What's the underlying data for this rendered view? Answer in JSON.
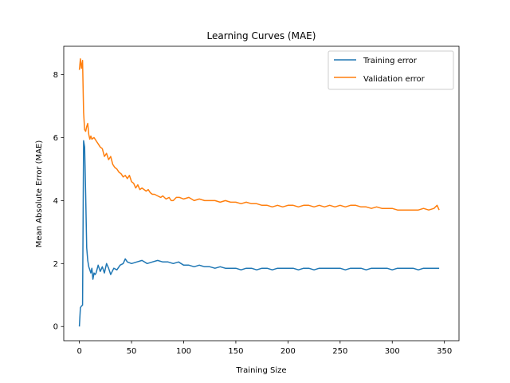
{
  "chart_data": {
    "type": "line",
    "title": "Learning Curves (MAE)",
    "xlabel": "Training Size",
    "ylabel": "Mean Absolute Error (MAE)",
    "xlim": [
      -15,
      364
    ],
    "ylim": [
      -0.45,
      8.9
    ],
    "xticks": [
      0,
      50,
      100,
      150,
      200,
      250,
      300,
      350
    ],
    "yticks": [
      0,
      2,
      4,
      6,
      8
    ],
    "grid": false,
    "legend_position": "top-right",
    "series": [
      {
        "name": "Training error",
        "color": "#1f77b4",
        "points": [
          [
            0,
            0.0
          ],
          [
            1,
            0.6
          ],
          [
            2,
            0.65
          ],
          [
            3,
            0.68
          ],
          [
            4,
            5.9
          ],
          [
            5,
            5.7
          ],
          [
            6,
            4.2
          ],
          [
            7,
            2.5
          ],
          [
            8,
            2.1
          ],
          [
            9,
            1.9
          ],
          [
            10,
            1.8
          ],
          [
            11,
            1.7
          ],
          [
            12,
            1.85
          ],
          [
            13,
            1.5
          ],
          [
            14,
            1.7
          ],
          [
            15,
            1.65
          ],
          [
            16,
            1.7
          ],
          [
            18,
            1.95
          ],
          [
            20,
            1.75
          ],
          [
            22,
            1.9
          ],
          [
            24,
            1.7
          ],
          [
            26,
            2.0
          ],
          [
            28,
            1.85
          ],
          [
            30,
            1.65
          ],
          [
            33,
            1.85
          ],
          [
            36,
            1.8
          ],
          [
            39,
            1.95
          ],
          [
            42,
            2.0
          ],
          [
            44,
            2.15
          ],
          [
            46,
            2.05
          ],
          [
            50,
            2.0
          ],
          [
            55,
            2.05
          ],
          [
            60,
            2.1
          ],
          [
            65,
            2.0
          ],
          [
            70,
            2.05
          ],
          [
            75,
            2.1
          ],
          [
            80,
            2.05
          ],
          [
            85,
            2.05
          ],
          [
            90,
            2.0
          ],
          [
            95,
            2.05
          ],
          [
            100,
            1.95
          ],
          [
            105,
            1.95
          ],
          [
            110,
            1.9
          ],
          [
            115,
            1.95
          ],
          [
            120,
            1.9
          ],
          [
            125,
            1.9
          ],
          [
            130,
            1.85
          ],
          [
            135,
            1.9
          ],
          [
            140,
            1.85
          ],
          [
            145,
            1.85
          ],
          [
            150,
            1.85
          ],
          [
            155,
            1.8
          ],
          [
            160,
            1.85
          ],
          [
            165,
            1.85
          ],
          [
            170,
            1.8
          ],
          [
            175,
            1.85
          ],
          [
            180,
            1.85
          ],
          [
            185,
            1.8
          ],
          [
            190,
            1.85
          ],
          [
            195,
            1.85
          ],
          [
            200,
            1.85
          ],
          [
            205,
            1.85
          ],
          [
            210,
            1.8
          ],
          [
            215,
            1.85
          ],
          [
            220,
            1.85
          ],
          [
            225,
            1.8
          ],
          [
            230,
            1.85
          ],
          [
            235,
            1.85
          ],
          [
            240,
            1.85
          ],
          [
            245,
            1.85
          ],
          [
            250,
            1.85
          ],
          [
            255,
            1.8
          ],
          [
            260,
            1.85
          ],
          [
            265,
            1.85
          ],
          [
            270,
            1.85
          ],
          [
            275,
            1.8
          ],
          [
            280,
            1.85
          ],
          [
            285,
            1.85
          ],
          [
            290,
            1.85
          ],
          [
            295,
            1.85
          ],
          [
            300,
            1.8
          ],
          [
            305,
            1.85
          ],
          [
            310,
            1.85
          ],
          [
            315,
            1.85
          ],
          [
            320,
            1.85
          ],
          [
            325,
            1.8
          ],
          [
            330,
            1.85
          ],
          [
            335,
            1.85
          ],
          [
            340,
            1.85
          ],
          [
            345,
            1.85
          ]
        ]
      },
      {
        "name": "Validation error",
        "color": "#ff7f0e",
        "points": [
          [
            0,
            8.15
          ],
          [
            1,
            8.5
          ],
          [
            2,
            8.2
          ],
          [
            3,
            8.45
          ],
          [
            4,
            6.8
          ],
          [
            5,
            6.25
          ],
          [
            6,
            6.2
          ],
          [
            7,
            6.35
          ],
          [
            8,
            6.45
          ],
          [
            9,
            6.1
          ],
          [
            10,
            5.95
          ],
          [
            11,
            6.05
          ],
          [
            12,
            5.95
          ],
          [
            14,
            6.0
          ],
          [
            16,
            5.9
          ],
          [
            18,
            5.8
          ],
          [
            20,
            5.7
          ],
          [
            22,
            5.65
          ],
          [
            24,
            5.4
          ],
          [
            26,
            5.5
          ],
          [
            28,
            5.3
          ],
          [
            30,
            5.4
          ],
          [
            32,
            5.15
          ],
          [
            34,
            5.05
          ],
          [
            36,
            5.0
          ],
          [
            38,
            4.9
          ],
          [
            40,
            4.85
          ],
          [
            42,
            4.75
          ],
          [
            44,
            4.8
          ],
          [
            46,
            4.7
          ],
          [
            48,
            4.8
          ],
          [
            50,
            4.6
          ],
          [
            52,
            4.55
          ],
          [
            54,
            4.4
          ],
          [
            56,
            4.5
          ],
          [
            58,
            4.35
          ],
          [
            60,
            4.4
          ],
          [
            62,
            4.35
          ],
          [
            64,
            4.3
          ],
          [
            66,
            4.35
          ],
          [
            68,
            4.25
          ],
          [
            70,
            4.2
          ],
          [
            72,
            4.2
          ],
          [
            75,
            4.15
          ],
          [
            78,
            4.1
          ],
          [
            80,
            4.15
          ],
          [
            83,
            4.05
          ],
          [
            86,
            4.1
          ],
          [
            88,
            4.0
          ],
          [
            90,
            4.0
          ],
          [
            93,
            4.1
          ],
          [
            96,
            4.1
          ],
          [
            100,
            4.05
          ],
          [
            105,
            4.1
          ],
          [
            110,
            4.0
          ],
          [
            115,
            4.05
          ],
          [
            120,
            4.0
          ],
          [
            125,
            4.0
          ],
          [
            130,
            4.0
          ],
          [
            135,
            3.95
          ],
          [
            140,
            4.0
          ],
          [
            145,
            3.95
          ],
          [
            150,
            3.95
          ],
          [
            155,
            3.9
          ],
          [
            160,
            3.95
          ],
          [
            165,
            3.9
          ],
          [
            170,
            3.9
          ],
          [
            175,
            3.85
          ],
          [
            180,
            3.85
          ],
          [
            185,
            3.8
          ],
          [
            190,
            3.85
          ],
          [
            195,
            3.8
          ],
          [
            200,
            3.85
          ],
          [
            205,
            3.85
          ],
          [
            210,
            3.8
          ],
          [
            215,
            3.85
          ],
          [
            220,
            3.85
          ],
          [
            225,
            3.8
          ],
          [
            230,
            3.85
          ],
          [
            235,
            3.8
          ],
          [
            240,
            3.85
          ],
          [
            245,
            3.8
          ],
          [
            250,
            3.85
          ],
          [
            255,
            3.8
          ],
          [
            260,
            3.85
          ],
          [
            265,
            3.85
          ],
          [
            270,
            3.8
          ],
          [
            275,
            3.8
          ],
          [
            280,
            3.75
          ],
          [
            285,
            3.8
          ],
          [
            290,
            3.75
          ],
          [
            295,
            3.75
          ],
          [
            300,
            3.75
          ],
          [
            305,
            3.7
          ],
          [
            310,
            3.7
          ],
          [
            315,
            3.7
          ],
          [
            320,
            3.7
          ],
          [
            325,
            3.7
          ],
          [
            330,
            3.75
          ],
          [
            335,
            3.7
          ],
          [
            340,
            3.75
          ],
          [
            343,
            3.85
          ],
          [
            345,
            3.7
          ]
        ]
      }
    ]
  }
}
